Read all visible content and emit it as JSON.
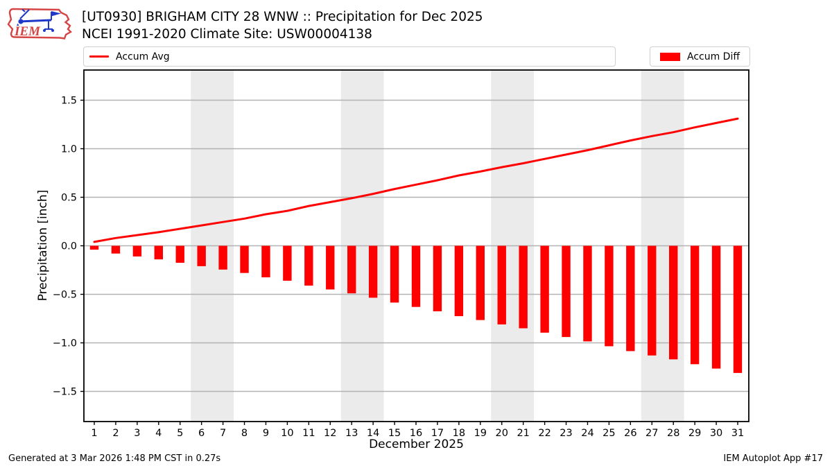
{
  "header": {
    "title_line1": "[UT0930] BRIGHAM CITY 28 WNW :: Precipitation for Dec 2025",
    "title_line2": "NCEI 1991-2020 Climate Site: USW00004138",
    "logo_text": "IEM"
  },
  "legend": {
    "avg_label": "Accum Avg",
    "diff_label": "Accum Diff"
  },
  "footer": {
    "generated": "Generated at 3 Mar 2026 1:48 PM CST in 0.27s",
    "app": "IEM Autoplot App #17"
  },
  "colors": {
    "accent_red": "#ff0000",
    "grid": "#b2b2b2",
    "weekend_band": "#ebebeb",
    "frame": "#000000",
    "logo_red": "#d64545",
    "logo_blue": "#2038c8"
  },
  "chart_data": {
    "type": "bar",
    "title": "[UT0930] BRIGHAM CITY 28 WNW :: Precipitation for Dec 2025",
    "subtitle": "NCEI 1991-2020 Climate Site: USW00004138",
    "xlabel": "December 2025",
    "ylabel": "Precipitation [inch]",
    "x": [
      1,
      2,
      3,
      4,
      5,
      6,
      7,
      8,
      9,
      10,
      11,
      12,
      13,
      14,
      15,
      16,
      17,
      18,
      19,
      20,
      21,
      22,
      23,
      24,
      25,
      26,
      27,
      28,
      29,
      30,
      31
    ],
    "series": [
      {
        "name": "Accum Avg",
        "type": "line",
        "color": "#ff0000",
        "values": [
          0.04,
          0.08,
          0.11,
          0.14,
          0.175,
          0.21,
          0.245,
          0.28,
          0.325,
          0.36,
          0.41,
          0.45,
          0.49,
          0.535,
          0.585,
          0.63,
          0.675,
          0.725,
          0.765,
          0.81,
          0.85,
          0.895,
          0.94,
          0.985,
          1.035,
          1.085,
          1.13,
          1.17,
          1.22,
          1.265,
          1.31
        ]
      },
      {
        "name": "Accum Diff",
        "type": "bar",
        "color": "#ff0000",
        "values": [
          -0.04,
          -0.08,
          -0.11,
          -0.14,
          -0.175,
          -0.21,
          -0.245,
          -0.28,
          -0.325,
          -0.36,
          -0.41,
          -0.45,
          -0.49,
          -0.535,
          -0.585,
          -0.63,
          -0.675,
          -0.725,
          -0.765,
          -0.81,
          -0.85,
          -0.895,
          -0.94,
          -0.985,
          -1.035,
          -1.085,
          -1.13,
          -1.17,
          -1.22,
          -1.265,
          -1.31
        ]
      }
    ],
    "ylim": [
      -1.81,
      1.81
    ],
    "yticks": [
      1.5,
      1.0,
      0.5,
      0.0,
      -0.5,
      -1.0,
      -1.5
    ],
    "ytick_labels": [
      "1.5",
      "1.0",
      "0.5",
      "0.0",
      "−0.5",
      "−1.0",
      "−1.5"
    ],
    "grid": true,
    "legend_position": "top",
    "weekend_bands": [
      [
        5.5,
        7.5
      ],
      [
        12.5,
        14.5
      ],
      [
        19.5,
        21.5
      ],
      [
        26.5,
        28.5
      ]
    ]
  }
}
